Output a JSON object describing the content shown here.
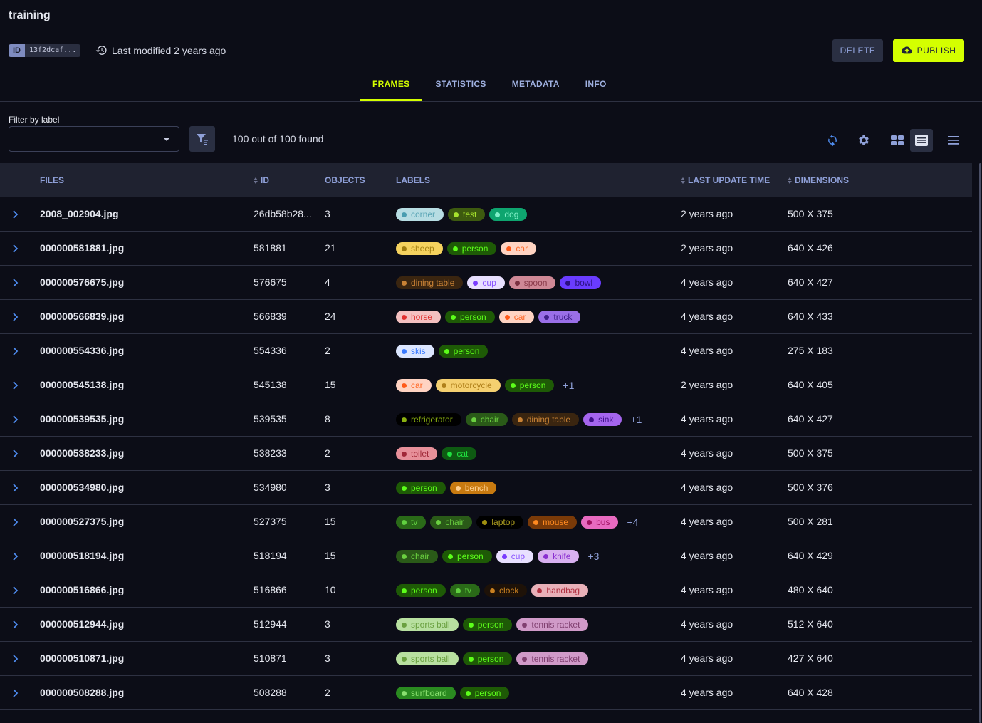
{
  "header": {
    "title": "training",
    "id_key": "ID",
    "id_value": "13f2dcaf...",
    "last_modified": "Last modified 2 years ago",
    "delete_label": "DELETE",
    "publish_label": "PUBLISH"
  },
  "tabs": [
    {
      "label": "FRAMES",
      "active": true
    },
    {
      "label": "STATISTICS"
    },
    {
      "label": "METADATA"
    },
    {
      "label": "INFO"
    }
  ],
  "filter": {
    "label": "Filter by label",
    "value": "",
    "count_text": "100 out of 100 found"
  },
  "columns": {
    "files": "FILES",
    "id": "ID",
    "objects": "OBJECTS",
    "labels": "LABELS",
    "last_update": "LAST UPDATE TIME",
    "dimensions": "DIMENSIONS"
  },
  "label_colors": {
    "corner": [
      "#b7dde3",
      "#4a9db0",
      "#5aa5b5"
    ],
    "test": [
      "#3d5a0f",
      "#a6e22e",
      "#a6e22e"
    ],
    "dog": [
      "#0ea56f",
      "#7ff0c8",
      "#7ff0c8"
    ],
    "sheep": [
      "#f5d25e",
      "#a07d10",
      "#a88414"
    ],
    "person": [
      "#1e5a06",
      "#5cff1a",
      "#5cff1a"
    ],
    "car": [
      "#ffd3c2",
      "#ff5a1a",
      "#ff6a2a"
    ],
    "dining table": [
      "#3a2510",
      "#c98235",
      "#c98235"
    ],
    "cup": [
      "#e8e0ff",
      "#7a3dff",
      "#8a55ff"
    ],
    "spoon": [
      "#cf8896",
      "#7a3040",
      "#8a3a4a"
    ],
    "bowl": [
      "#6a3cff",
      "#2a1080",
      "#2a1080"
    ],
    "horse": [
      "#f4c0c0",
      "#e03030",
      "#e03030"
    ],
    "truck": [
      "#9a6fe8",
      "#40208a",
      "#40208a"
    ],
    "skis": [
      "#dce6ff",
      "#3a7aff",
      "#3a7aff"
    ],
    "motorcycle": [
      "#f5d070",
      "#b0801a",
      "#b0801a"
    ],
    "refrigerator": [
      "#000000",
      "#8ab010",
      "#8ab010"
    ],
    "chair": [
      "#2a5a18",
      "#6ad040",
      "#6ad040"
    ],
    "sink": [
      "#a565ee",
      "#40108a",
      "#40108a"
    ],
    "toilet": [
      "#e7909a",
      "#a02838",
      "#a02838"
    ],
    "cat": [
      "#0e5a12",
      "#20e040",
      "#20e040"
    ],
    "bench": [
      "#c87a10",
      "#ffd090",
      "#ffd090"
    ],
    "tv": [
      "#2a6a18",
      "#60d040",
      "#60d040"
    ],
    "laptop": [
      "#000000",
      "#a09010",
      "#b0a020"
    ],
    "mouse": [
      "#7a3a08",
      "#ff8a20",
      "#ff8a20"
    ],
    "bus": [
      "#e86ac0",
      "#a01060",
      "#a01060"
    ],
    "knife": [
      "#d8b0f0",
      "#8a30d0",
      "#8a30d0"
    ],
    "clock": [
      "#1e1208",
      "#c98020",
      "#c98020"
    ],
    "handbag": [
      "#e8b0b8",
      "#b03040",
      "#b03040"
    ],
    "sports ball": [
      "#b8e0a0",
      "#6aa040",
      "#6aa040"
    ],
    "tennis racket": [
      "#d09ac8",
      "#804070",
      "#804070"
    ],
    "surfboard": [
      "#2a8a20",
      "#8ae070",
      "#8ae070"
    ]
  },
  "rows": [
    {
      "file": "2008_002904.jpg",
      "id": "26db58b28...",
      "objects": "3",
      "labels": [
        "corner",
        "test",
        "dog"
      ],
      "more": "",
      "updated": "2 years ago",
      "dims": "500 X 375"
    },
    {
      "file": "000000581881.jpg",
      "id": "581881",
      "objects": "21",
      "labels": [
        "sheep",
        "person",
        "car"
      ],
      "more": "",
      "updated": "2 years ago",
      "dims": "640 X 426"
    },
    {
      "file": "000000576675.jpg",
      "id": "576675",
      "objects": "4",
      "labels": [
        "dining table",
        "cup",
        "spoon",
        "bowl"
      ],
      "more": "",
      "updated": "4 years ago",
      "dims": "640 X 427"
    },
    {
      "file": "000000566839.jpg",
      "id": "566839",
      "objects": "24",
      "labels": [
        "horse",
        "person",
        "car",
        "truck"
      ],
      "more": "",
      "updated": "4 years ago",
      "dims": "640 X 433"
    },
    {
      "file": "000000554336.jpg",
      "id": "554336",
      "objects": "2",
      "labels": [
        "skis",
        "person"
      ],
      "more": "",
      "updated": "4 years ago",
      "dims": "275 X 183"
    },
    {
      "file": "000000545138.jpg",
      "id": "545138",
      "objects": "15",
      "labels": [
        "car",
        "motorcycle",
        "person"
      ],
      "more": "+1",
      "updated": "2 years ago",
      "dims": "640 X 405"
    },
    {
      "file": "000000539535.jpg",
      "id": "539535",
      "objects": "8",
      "labels": [
        "refrigerator",
        "chair",
        "dining table",
        "sink"
      ],
      "more": "+1",
      "updated": "4 years ago",
      "dims": "640 X 427"
    },
    {
      "file": "000000538233.jpg",
      "id": "538233",
      "objects": "2",
      "labels": [
        "toilet",
        "cat"
      ],
      "more": "",
      "updated": "4 years ago",
      "dims": "500 X 375"
    },
    {
      "file": "000000534980.jpg",
      "id": "534980",
      "objects": "3",
      "labels": [
        "person",
        "bench"
      ],
      "more": "",
      "updated": "4 years ago",
      "dims": "500 X 376"
    },
    {
      "file": "000000527375.jpg",
      "id": "527375",
      "objects": "15",
      "labels": [
        "tv",
        "chair",
        "laptop",
        "mouse",
        "bus"
      ],
      "more": "+4",
      "updated": "4 years ago",
      "dims": "500 X 281"
    },
    {
      "file": "000000518194.jpg",
      "id": "518194",
      "objects": "15",
      "labels": [
        "chair",
        "person",
        "cup",
        "knife"
      ],
      "more": "+3",
      "updated": "4 years ago",
      "dims": "640 X 429"
    },
    {
      "file": "000000516866.jpg",
      "id": "516866",
      "objects": "10",
      "labels": [
        "person",
        "tv",
        "clock",
        "handbag"
      ],
      "more": "",
      "updated": "4 years ago",
      "dims": "480 X 640"
    },
    {
      "file": "000000512944.jpg",
      "id": "512944",
      "objects": "3",
      "labels": [
        "sports ball",
        "person",
        "tennis racket"
      ],
      "more": "",
      "updated": "4 years ago",
      "dims": "512 X 640"
    },
    {
      "file": "000000510871.jpg",
      "id": "510871",
      "objects": "3",
      "labels": [
        "sports ball",
        "person",
        "tennis racket"
      ],
      "more": "",
      "updated": "4 years ago",
      "dims": "427 X 640"
    },
    {
      "file": "000000508288.jpg",
      "id": "508288",
      "objects": "2",
      "labels": [
        "surfboard",
        "person"
      ],
      "more": "",
      "updated": "4 years ago",
      "dims": "640 X 428"
    }
  ],
  "icons": {
    "history": "history-icon",
    "publish": "cloud-upload-icon",
    "filter": "filter-list-icon",
    "refresh": "refresh-icon",
    "settings": "gear-icon",
    "grid": "grid-view-icon",
    "list": "list-view-icon",
    "menu": "menu-icon",
    "expand": "chevron-right-icon"
  }
}
